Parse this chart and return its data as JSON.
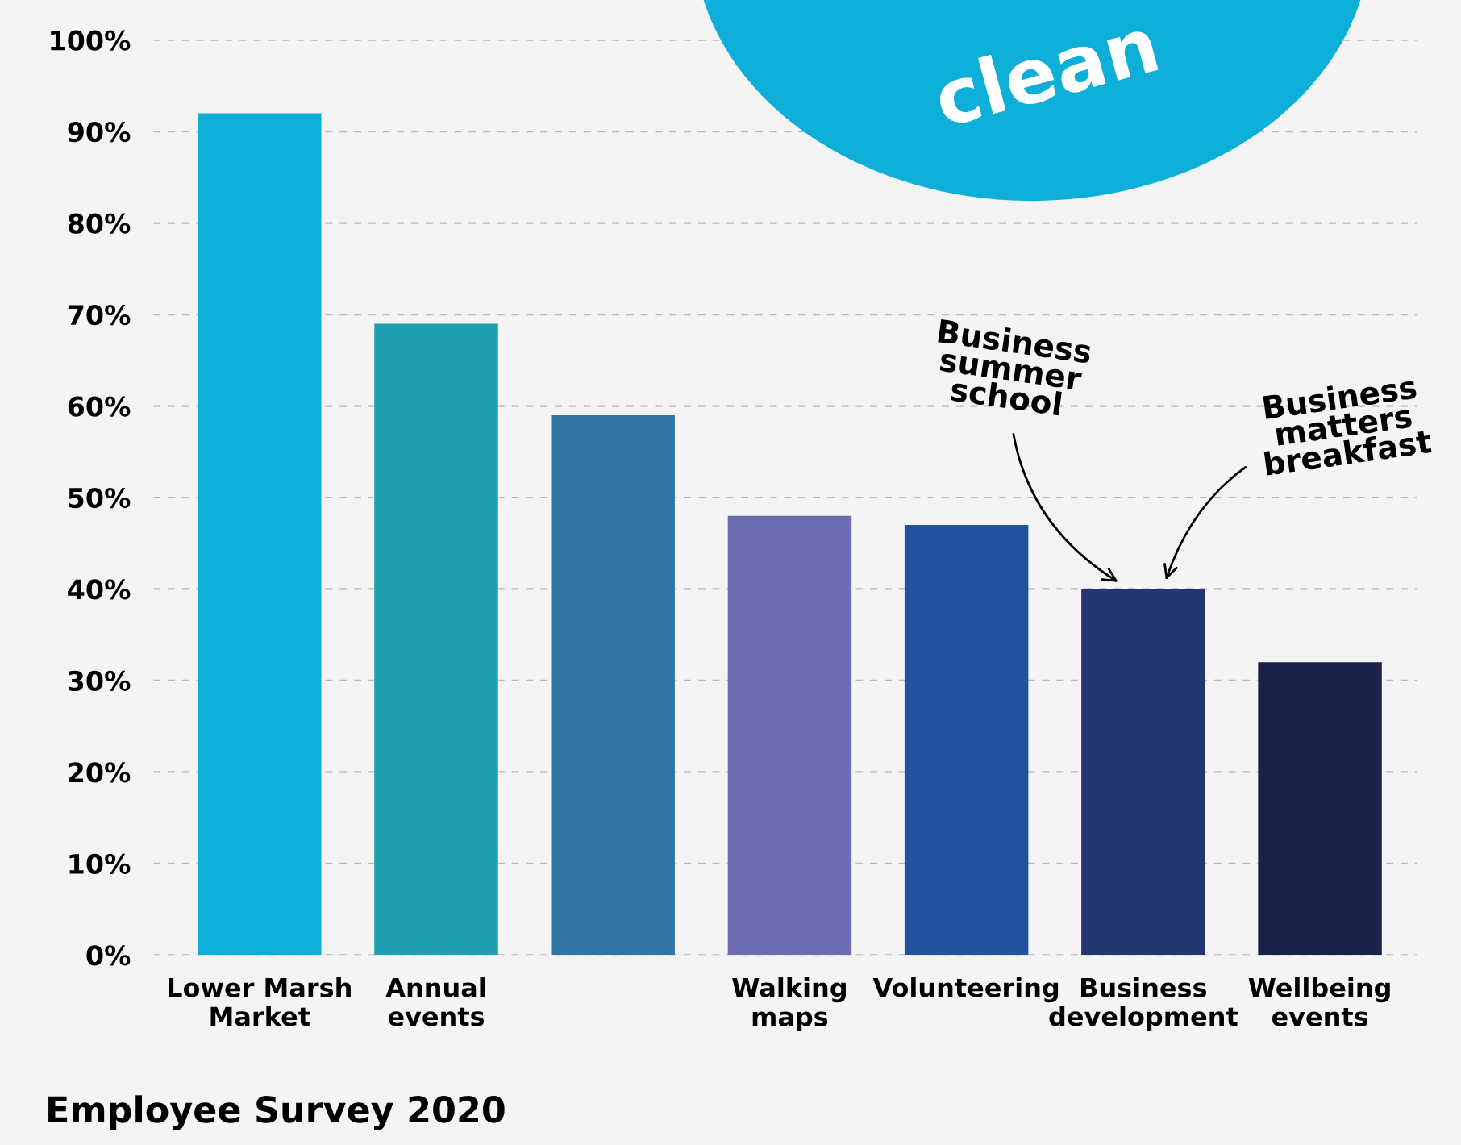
{
  "chart_data": {
    "type": "bar",
    "title": "Employee Survey 2020",
    "categories": [
      "Lower Marsh\nMarket",
      "Annual\nevents",
      null,
      "Walking\nmaps",
      "Volunteering",
      "Business\ndevelopment",
      "Wellbeing\nevents"
    ],
    "values": [
      92,
      69,
      59,
      48,
      47,
      40,
      32
    ],
    "colors": [
      "#0dafd8",
      "#20a0ae",
      "#3075a5",
      "#6c6eb0",
      "#22529f",
      "#233670",
      "#18224a"
    ],
    "ylim": [
      0,
      100
    ],
    "yticks": [
      {
        "value": 0,
        "label": "0%"
      },
      {
        "value": 10,
        "label": "10%"
      },
      {
        "value": 20,
        "label": "20%"
      },
      {
        "value": 30,
        "label": "30%"
      },
      {
        "value": 40,
        "label": "40%"
      },
      {
        "value": 50,
        "label": "50%"
      },
      {
        "value": 60,
        "label": "60%"
      },
      {
        "value": 70,
        "label": "70%"
      },
      {
        "value": 80,
        "label": "80%"
      },
      {
        "value": 90,
        "label": "90%"
      },
      {
        "value": 100,
        "label": "100%"
      }
    ],
    "grid": "y",
    "annotations": [
      "Business\nsummer\nschool",
      "Business\nmatters\nbreakfast",
      "clean"
    ]
  }
}
